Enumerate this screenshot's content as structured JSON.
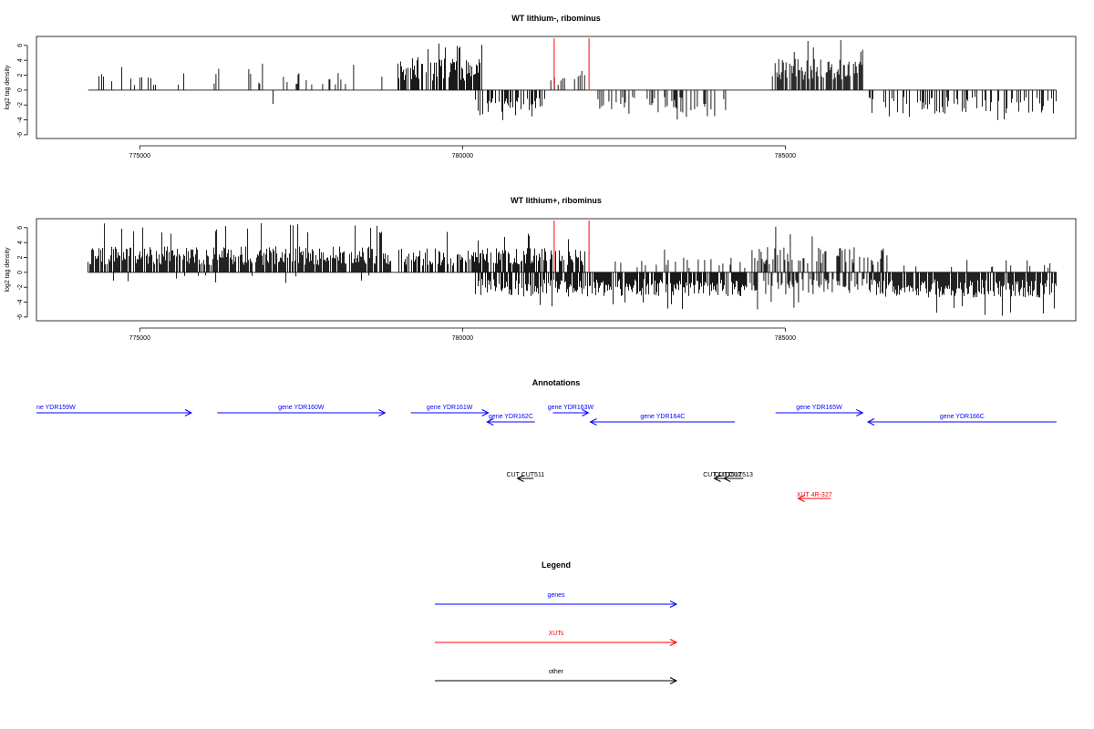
{
  "colors": {
    "gene": "#0000ff",
    "xut": "#ff0000",
    "other": "#000000",
    "axis": "#000000",
    "zero": "#808080",
    "marker": "#ff0000"
  },
  "chart_data": [
    {
      "type": "bar",
      "title": "WT lithium-, ribominus",
      "ylabel": "log2 tag density",
      "xlim": [
        773400,
        789500
      ],
      "ylim": [
        -6.5,
        7.2
      ],
      "yticks": [
        -6,
        -4,
        -2,
        0,
        2,
        4,
        6
      ],
      "xticks": [
        775000,
        780000,
        785000
      ],
      "xtick_labels": [
        "775000",
        "780000",
        "785000"
      ],
      "marker_lines_x": [
        781420,
        781960
      ],
      "grid": false,
      "signal_segments": [
        {
          "strand": "+",
          "start": 774200,
          "end": 775800,
          "density": 0.1,
          "typical": 1.8,
          "max": 3.2
        },
        {
          "strand": "+",
          "start": 775800,
          "end": 777000,
          "density": 0.1,
          "typical": 1.8,
          "max": 3.6
        },
        {
          "strand": "+",
          "start": 777000,
          "end": 778900,
          "density": 0.11,
          "typical": 1.9,
          "max": 3.6
        },
        {
          "strand": "+",
          "start": 779000,
          "end": 780300,
          "density": 0.75,
          "typical": 3.6,
          "max": 6.6
        },
        {
          "strand": "+",
          "start": 781100,
          "end": 781900,
          "density": 0.1,
          "typical": 1.6,
          "max": 3.0
        },
        {
          "strand": "+",
          "start": 784800,
          "end": 786200,
          "density": 0.7,
          "typical": 3.4,
          "max": 6.7
        },
        {
          "strand": "-",
          "start": 780200,
          "end": 781300,
          "density": 0.42,
          "typical": -2.8,
          "max": -4.2
        },
        {
          "strand": "-",
          "start": 782000,
          "end": 784100,
          "density": 0.36,
          "typical": -2.6,
          "max": -4.3
        },
        {
          "strand": "-",
          "start": 786300,
          "end": 789200,
          "density": 0.34,
          "typical": -2.6,
          "max": -4.4
        },
        {
          "strand": "-",
          "start": 776500,
          "end": 777500,
          "density": 0.01,
          "typical": -1.8,
          "max": -2.6
        }
      ]
    },
    {
      "type": "bar",
      "title": "WT lithium+, ribominus",
      "ylabel": "log2 tag density",
      "xlim": [
        773400,
        789500
      ],
      "ylim": [
        -6.5,
        7.2
      ],
      "yticks": [
        -6,
        -4,
        -2,
        0,
        2,
        4,
        6
      ],
      "xticks": [
        775000,
        780000,
        785000
      ],
      "xtick_labels": [
        "775000",
        "780000",
        "785000"
      ],
      "marker_lines_x": [
        781420,
        781960
      ],
      "grid": false,
      "signal_segments": [
        {
          "strand": "+",
          "start": 774200,
          "end": 778900,
          "density": 0.8,
          "typical": 2.8,
          "max": 6.9
        },
        {
          "strand": "+",
          "start": 779000,
          "end": 781900,
          "density": 0.7,
          "typical": 2.6,
          "max": 5.5
        },
        {
          "strand": "+",
          "start": 782000,
          "end": 784400,
          "density": 0.12,
          "typical": 1.6,
          "max": 3.4
        },
        {
          "strand": "+",
          "start": 784400,
          "end": 786600,
          "density": 0.4,
          "typical": 2.8,
          "max": 6.3
        },
        {
          "strand": "+",
          "start": 786600,
          "end": 789200,
          "density": 0.06,
          "typical": 1.4,
          "max": 2.6
        },
        {
          "strand": "-",
          "start": 774200,
          "end": 779000,
          "density": 0.02,
          "typical": -1.2,
          "max": -2.5
        },
        {
          "strand": "-",
          "start": 780200,
          "end": 781500,
          "density": 0.7,
          "typical": -2.6,
          "max": -5.0
        },
        {
          "strand": "-",
          "start": 781500,
          "end": 784400,
          "density": 0.75,
          "typical": -2.6,
          "max": -5.2
        },
        {
          "strand": "-",
          "start": 784400,
          "end": 786300,
          "density": 0.5,
          "typical": -2.4,
          "max": -5.0
        },
        {
          "strand": "-",
          "start": 786300,
          "end": 789200,
          "density": 0.8,
          "typical": -2.7,
          "max": -5.9
        }
      ]
    }
  ],
  "annotations": {
    "title": "Annotations",
    "genes": [
      {
        "label": "ne YDR159W",
        "strand": "+",
        "start": 773400,
        "end": 775800,
        "row": 0
      },
      {
        "label": "gene YDR160W",
        "strand": "+",
        "start": 776200,
        "end": 778800,
        "row": 0
      },
      {
        "label": "gene YDR161W",
        "strand": "+",
        "start": 779200,
        "end": 780400,
        "row": 0
      },
      {
        "label": "gene YDR162C",
        "strand": "-",
        "start": 780380,
        "end": 781120,
        "row": 1
      },
      {
        "label": "gene YDR163W",
        "strand": "+",
        "start": 781400,
        "end": 781950,
        "row": 0
      },
      {
        "label": "gene YDR164C",
        "strand": "-",
        "start": 781980,
        "end": 784220,
        "row": 1
      },
      {
        "label": "gene YDR165W",
        "strand": "+",
        "start": 784850,
        "end": 786200,
        "row": 0
      },
      {
        "label": "gene YDR166C",
        "strand": "-",
        "start": 786280,
        "end": 789200,
        "row": 1
      }
    ],
    "others": [
      {
        "label": "CUT CUT511",
        "strand": "-",
        "start": 780850,
        "end": 781100
      },
      {
        "label": "CUT CUT512",
        "strand": "-",
        "start": 783900,
        "end": 784150
      },
      {
        "label": "CUT CUT513",
        "strand": "-",
        "start": 784050,
        "end": 784350
      }
    ],
    "xuts": [
      {
        "label": "XUT 4R-327",
        "strand": "-",
        "start": 785200,
        "end": 785700
      }
    ]
  },
  "legend": {
    "title": "Legend",
    "entries": [
      {
        "label": "genes",
        "kind": "gene"
      },
      {
        "label": "XUTs",
        "kind": "xut"
      },
      {
        "label": "other",
        "kind": "other"
      }
    ]
  }
}
